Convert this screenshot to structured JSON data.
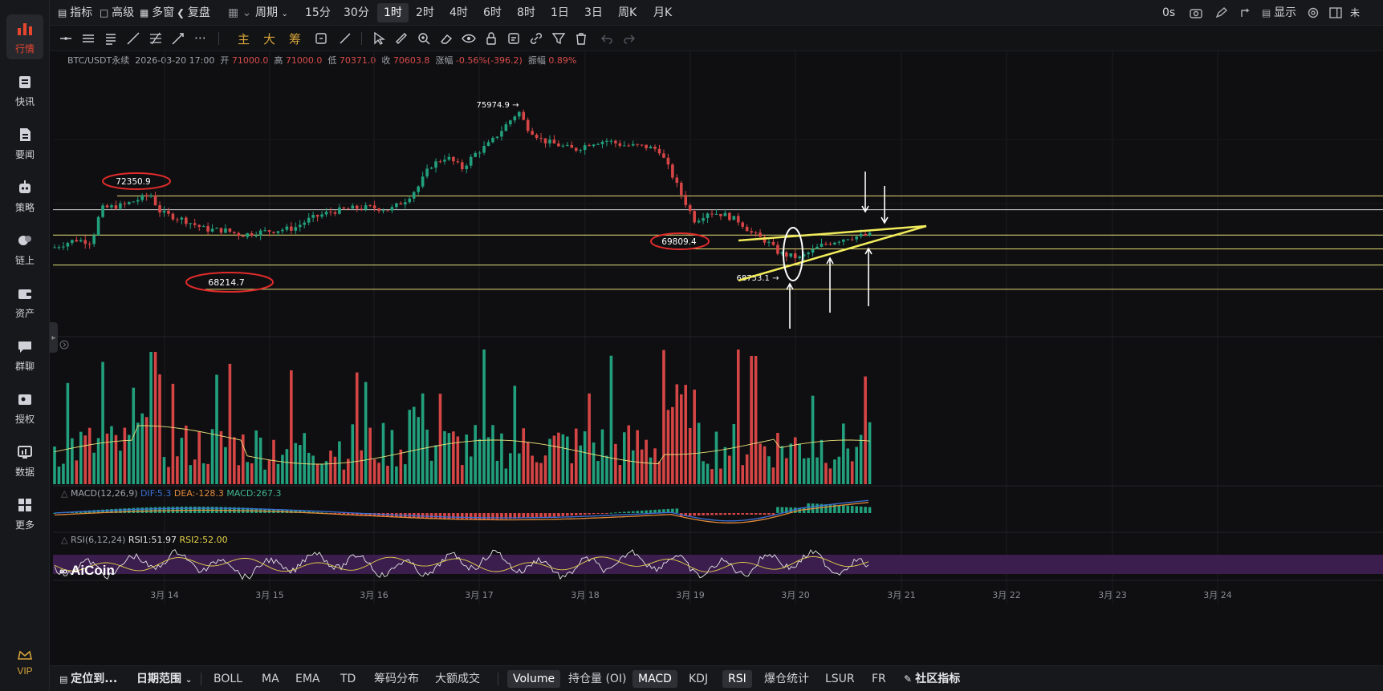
{
  "sidebar": {
    "items": [
      {
        "label": "行情",
        "icon": "bar-chart-icon",
        "active": true
      },
      {
        "label": "快讯",
        "icon": "newsflash-icon"
      },
      {
        "label": "要闻",
        "icon": "news-icon"
      },
      {
        "label": "策略",
        "icon": "robot-icon"
      },
      {
        "label": "链上",
        "icon": "chain-icon"
      },
      {
        "label": "资产",
        "icon": "wallet-icon"
      },
      {
        "label": "群聊",
        "icon": "chat-icon"
      },
      {
        "label": "授权",
        "icon": "key-icon"
      },
      {
        "label": "数据",
        "icon": "data-monitor-icon"
      },
      {
        "label": "更多",
        "icon": "grid-more-icon"
      }
    ],
    "vip_label": "VIP"
  },
  "topbar": {
    "indicators": "指标",
    "advanced": "高级",
    "multi_window": "多窗",
    "replay": "复盘",
    "period": "周期",
    "intervals": [
      "15分",
      "30分",
      "1时",
      "2时",
      "4时",
      "6时",
      "8时",
      "1日",
      "3日",
      "周K",
      "月K"
    ],
    "active_interval": "1时",
    "right": {
      "seconds": "0s",
      "display": "显示",
      "cutoff": "未"
    }
  },
  "drawbar": {
    "main": "主",
    "large": "大",
    "chips": "筹"
  },
  "info": {
    "symbol": "BTC/USDT永续",
    "datetime": "2026-03-20 17:00",
    "open_label": "开",
    "open": "71000.0",
    "high_label": "高",
    "high": "71000.0",
    "low_label": "低",
    "low": "70371.0",
    "close_label": "收",
    "close": "70603.8",
    "change_label": "涨幅",
    "change": "-0.56%(-396.2)",
    "amplitude_label": "振幅",
    "amplitude": "0.89%"
  },
  "macd": {
    "name": "MACD(12,26,9)",
    "dif": "DIF:5.3",
    "dea": "DEA:-128.3",
    "macd": "MACD:267.3"
  },
  "rsi": {
    "name": "RSI(6,12,24)",
    "rsi1": "RSI1:51.97",
    "rsi2": "RSI2:52.00"
  },
  "watermark": "AiCoin",
  "chart_data": {
    "type": "candlestick",
    "price_labels": [
      {
        "text": "75974.9",
        "value": 75974.9,
        "kind": "high"
      },
      {
        "text": "72350.9",
        "value": 72350.9,
        "kind": "circled"
      },
      {
        "text": "69809.4",
        "value": 69809.4,
        "kind": "circled"
      },
      {
        "text": "68214.7",
        "value": 68214.7,
        "kind": "circled"
      },
      {
        "text": "68753.1",
        "value": 68753.1,
        "kind": "low"
      }
    ],
    "x_ticks": [
      "3月 14",
      "3月 15",
      "3月 16",
      "3月 17",
      "3月 18",
      "3月 19",
      "3月 20",
      "3月 21",
      "3月 22",
      "3月 23",
      "3月 24"
    ],
    "horizontal_levels": [
      72300,
      71700,
      70600,
      70000,
      69300,
      68250
    ]
  },
  "bottombar": {
    "locate": "定位到...",
    "date_range": "日期范围",
    "items": [
      "BOLL",
      "MA",
      "EMA",
      "TD",
      "筹码分布",
      "大额成交"
    ],
    "sub_items": [
      "Volume",
      "持仓量 (OI)",
      "MACD",
      "KDJ",
      "RSI",
      "爆仓统计",
      "LSUR",
      "FR"
    ],
    "active_sub": [
      "Volume",
      "MACD",
      "RSI"
    ],
    "community": "社区指标"
  }
}
